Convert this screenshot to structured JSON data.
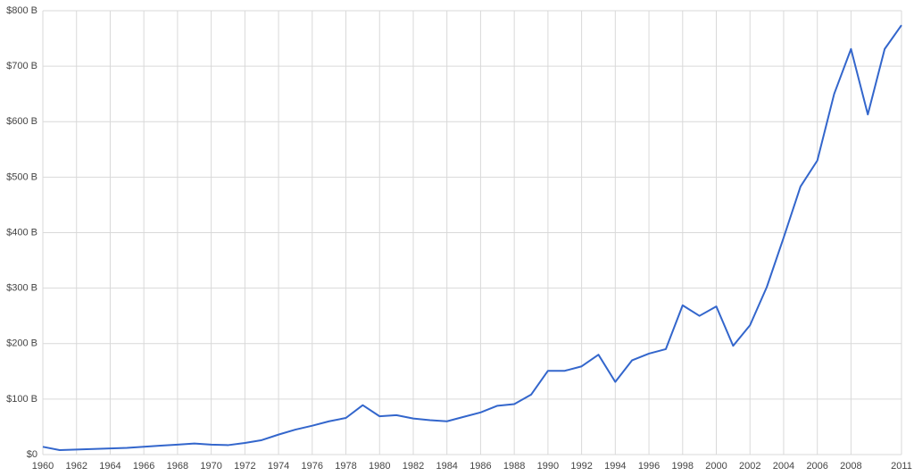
{
  "chart_data": {
    "type": "line",
    "x": [
      1960,
      1961,
      1962,
      1963,
      1964,
      1965,
      1966,
      1967,
      1968,
      1969,
      1970,
      1971,
      1972,
      1973,
      1974,
      1975,
      1976,
      1977,
      1978,
      1979,
      1980,
      1981,
      1982,
      1983,
      1984,
      1985,
      1986,
      1987,
      1988,
      1989,
      1990,
      1991,
      1992,
      1993,
      1994,
      1995,
      1996,
      1997,
      1998,
      1999,
      2000,
      2001,
      2002,
      2003,
      2004,
      2005,
      2006,
      2007,
      2008,
      2009,
      2010,
      2011
    ],
    "series": [
      {
        "color": "#3366cc",
        "values": [
          14,
          8,
          9,
          10,
          11,
          12,
          14,
          16,
          18,
          20,
          18,
          17,
          21,
          26,
          36,
          45,
          52,
          60,
          66,
          89,
          69,
          71,
          65,
          62,
          60,
          68,
          76,
          88,
          91,
          108,
          151,
          151,
          159,
          180,
          131,
          170,
          182,
          190,
          269,
          250,
          267,
          196,
          233,
          302,
          391,
          483,
          530,
          650,
          731,
          613,
          731,
          774
        ]
      }
    ],
    "xlim": [
      1960,
      2011
    ],
    "xticks": [
      1960,
      1962,
      1964,
      1966,
      1968,
      1970,
      1972,
      1974,
      1976,
      1978,
      1980,
      1982,
      1984,
      1986,
      1988,
      1990,
      1992,
      1994,
      1996,
      1998,
      2000,
      2002,
      2004,
      2006,
      2008,
      2011
    ],
    "ylim": [
      0,
      800
    ],
    "yticks": [
      {
        "value": 0,
        "label": "$0"
      },
      {
        "value": 100,
        "label": "$100 B"
      },
      {
        "value": 200,
        "label": "$200 B"
      },
      {
        "value": 300,
        "label": "$300 B"
      },
      {
        "value": 400,
        "label": "$400 B"
      },
      {
        "value": 500,
        "label": "$500 B"
      },
      {
        "value": 600,
        "label": "$600 B"
      },
      {
        "value": 700,
        "label": "$700 B"
      },
      {
        "value": 800,
        "label": "$800 B"
      }
    ],
    "grid": true
  }
}
